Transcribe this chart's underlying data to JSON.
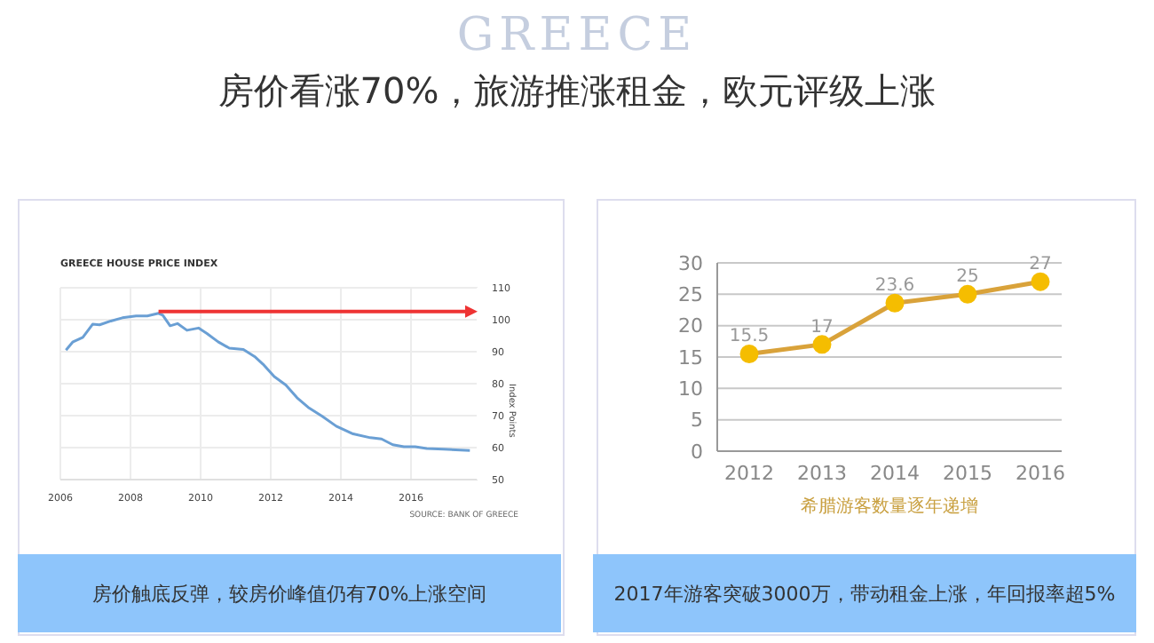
{
  "chart_data": [
    {
      "type": "line",
      "title": "GREECE HOUSE PRICE INDEX",
      "ylabel": "Index Points",
      "annotations": [
        "房价看涨70%，旅游推涨租金，欧元评级上涨",
        "SOURCE: BANK OF GREECE",
        "GREECE",
        "房价触底反弹，较房价峰值仍有70%上涨空间"
      ],
      "x": [
        2006.16,
        2006.35,
        2006.64,
        2006.92,
        2007.12,
        2007.44,
        2007.77,
        2008.16,
        2008.48,
        2008.8,
        2008.92,
        2009.13,
        2009.34,
        2009.61,
        2009.94,
        2010.18,
        2010.5,
        2010.82,
        2011.22,
        2011.54,
        2011.78,
        2012.1,
        2012.43,
        2012.75,
        2013.07,
        2013.47,
        2013.87,
        2014.35,
        2014.84,
        2015.16,
        2015.48,
        2015.8,
        2016.12,
        2016.45,
        2016.93,
        2017.68
      ],
      "series": [
        {
          "color": "#6a9fd4",
          "values": [
            90.5,
            93,
            94.5,
            98.6,
            98.4,
            99.6,
            100.6,
            101.2,
            101.2,
            102,
            101.4,
            98.1,
            98.8,
            96.7,
            97.4,
            95.7,
            93.1,
            91.1,
            90.7,
            88.5,
            86.1,
            82.2,
            79.6,
            75.6,
            72.6,
            69.8,
            66.7,
            64.3,
            63.1,
            62.7,
            60.9,
            60.3,
            60.3,
            59.7,
            59.5,
            59.1
          ]
        }
      ],
      "xlim": [
        2006,
        2017.9
      ],
      "xticks": [
        2006,
        2008,
        2010,
        2012,
        2014,
        2016
      ],
      "ylim": [
        50,
        110
      ],
      "yticks": [
        50,
        60,
        70,
        80,
        90,
        100,
        110
      ],
      "grid": true,
      "marker": "none",
      "line_style": "solid"
    },
    {
      "type": "line",
      "xlabel": "希腊游客数量逐年递增",
      "annotations": [
        "2017年游客突破3000万，带动租金上涨，年回报率超5%"
      ],
      "categories": [
        "2012",
        "2013",
        "2014",
        "2015",
        "2016"
      ],
      "series": [
        {
          "color": "#d9a23a",
          "values": [
            15.5,
            17,
            23.6,
            25,
            27
          ]
        }
      ],
      "ylim": [
        0,
        30
      ],
      "yticks": [
        0,
        5,
        10,
        15,
        20,
        25,
        30
      ],
      "grid": "y",
      "marker": "circle",
      "line_style": "solid",
      "data_labels": true
    }
  ]
}
